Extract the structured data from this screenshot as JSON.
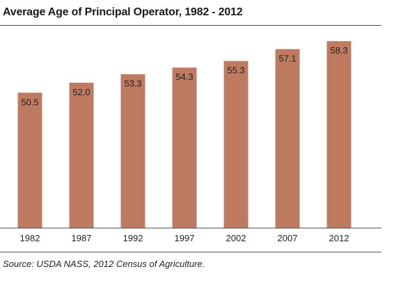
{
  "title": "Average Age of Principal Operator, 1982 - 2012",
  "source": "Source: USDA NASS, 2012 Census of Agriculture.",
  "colors": {
    "bar": "#bf7b62",
    "axis": "#444444"
  },
  "chart_data": {
    "type": "bar",
    "categories": [
      "1982",
      "1987",
      "1992",
      "1997",
      "2002",
      "2007",
      "2012"
    ],
    "values": [
      50.5,
      52.0,
      53.3,
      54.3,
      55.3,
      57.1,
      58.3
    ],
    "value_labels": [
      "50.5",
      "52.0",
      "53.3",
      "54.3",
      "55.3",
      "57.1",
      "58.3"
    ],
    "title": "Average Age of Principal Operator, 1982 - 2012",
    "xlabel": "",
    "ylabel": "",
    "ylim": [
      30,
      60
    ],
    "grid": false,
    "legend": "none"
  }
}
